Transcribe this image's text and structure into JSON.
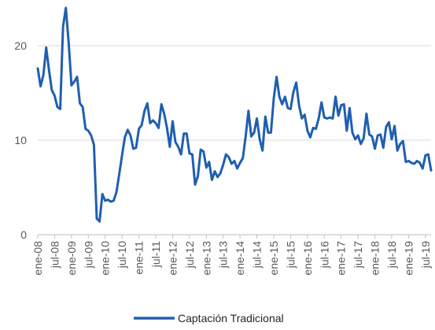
{
  "chart_data": {
    "type": "line",
    "title": "",
    "xlabel": "",
    "ylabel": "",
    "ylim": [
      0,
      25
    ],
    "yticks": [
      0,
      10,
      20
    ],
    "grid": "horizontal",
    "legend_position": "bottom-center",
    "color": "#1f5fb0",
    "x_tick_labels": [
      "ene-08",
      "jul-08",
      "ene-09",
      "jul-09",
      "ene-10",
      "jul-10",
      "ene-11",
      "jul-11",
      "ene-12",
      "jul-12",
      "ene-13",
      "jul-13",
      "ene-14",
      "jul-14",
      "ene-15",
      "jul-15",
      "ene-16",
      "jul-16",
      "ene-17",
      "jul-17",
      "ene-18",
      "jul-18",
      "ene-19",
      "jul-19"
    ],
    "series": [
      {
        "name": "Captación Tradicional",
        "values": [
          17.6,
          15.7,
          16.9,
          19.8,
          17.4,
          15.3,
          14.7,
          13.5,
          13.3,
          22.0,
          24.0,
          20.3,
          15.8,
          16.2,
          16.7,
          13.9,
          13.5,
          11.2,
          11.0,
          10.5,
          9.5,
          1.7,
          1.4,
          4.3,
          3.6,
          3.7,
          3.5,
          3.6,
          4.5,
          6.4,
          8.4,
          10.3,
          11.1,
          10.5,
          9.1,
          9.2,
          11.2,
          11.6,
          13.1,
          13.9,
          11.8,
          12.1,
          11.8,
          11.3,
          13.8,
          12.8,
          11.3,
          9.3,
          12.0,
          9.8,
          9.3,
          8.5,
          10.7,
          10.7,
          8.6,
          8.5,
          5.3,
          6.2,
          9.0,
          8.8,
          7.1,
          7.7,
          5.8,
          6.7,
          6.1,
          6.5,
          7.4,
          8.5,
          8.2,
          7.5,
          7.8,
          7.0,
          7.6,
          8.1,
          10.4,
          13.1,
          10.4,
          10.8,
          12.3,
          10.1,
          8.9,
          12.5,
          10.8,
          10.8,
          14.4,
          16.7,
          14.6,
          13.8,
          14.6,
          13.4,
          13.3,
          15.1,
          16.1,
          13.7,
          12.3,
          12.7,
          11.0,
          10.3,
          11.3,
          11.2,
          12.3,
          14.0,
          12.4,
          12.3,
          12.4,
          12.3,
          14.6,
          12.6,
          13.7,
          13.8,
          11.0,
          13.4,
          10.8,
          10.1,
          10.5,
          9.6,
          10.2,
          12.8,
          10.6,
          10.4,
          9.1,
          10.5,
          10.6,
          9.2,
          11.4,
          11.9,
          10.1,
          11.5,
          8.9,
          9.6,
          9.9,
          7.7,
          7.8,
          7.6,
          7.5,
          7.8,
          7.6,
          7.0,
          8.4,
          8.5,
          6.8
        ]
      }
    ]
  }
}
